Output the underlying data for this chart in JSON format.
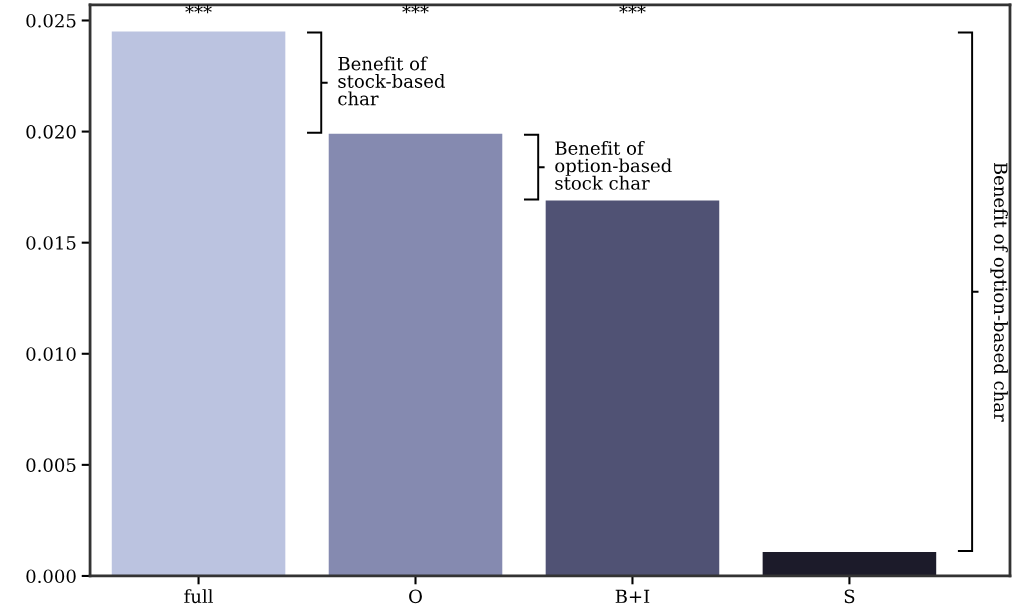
{
  "chart_data": {
    "type": "bar",
    "categories": [
      "full",
      "O",
      "B+I",
      "S"
    ],
    "values": [
      0.0245,
      0.0199,
      0.0169,
      0.00108
    ],
    "colors": [
      "#bbc3e0",
      "#858ab0",
      "#505274",
      "#1c1b2a"
    ],
    "ylim": [
      0,
      0.0257
    ],
    "yticks": [
      {
        "value": 0,
        "label": "0.000"
      },
      {
        "value": 0.005,
        "label": "0.005"
      },
      {
        "value": 0.01,
        "label": "0.010"
      },
      {
        "value": 0.015,
        "label": "0.015"
      },
      {
        "value": 0.02,
        "label": "0.020"
      },
      {
        "value": 0.025,
        "label": "0.025"
      }
    ],
    "grid": false,
    "legend": false,
    "annotations": [
      "***",
      "***",
      "***",
      "Benefit of\nstock-based\nchar",
      "Benefit of\noption-based\nstock char",
      "Benefit of option-based char"
    ]
  }
}
